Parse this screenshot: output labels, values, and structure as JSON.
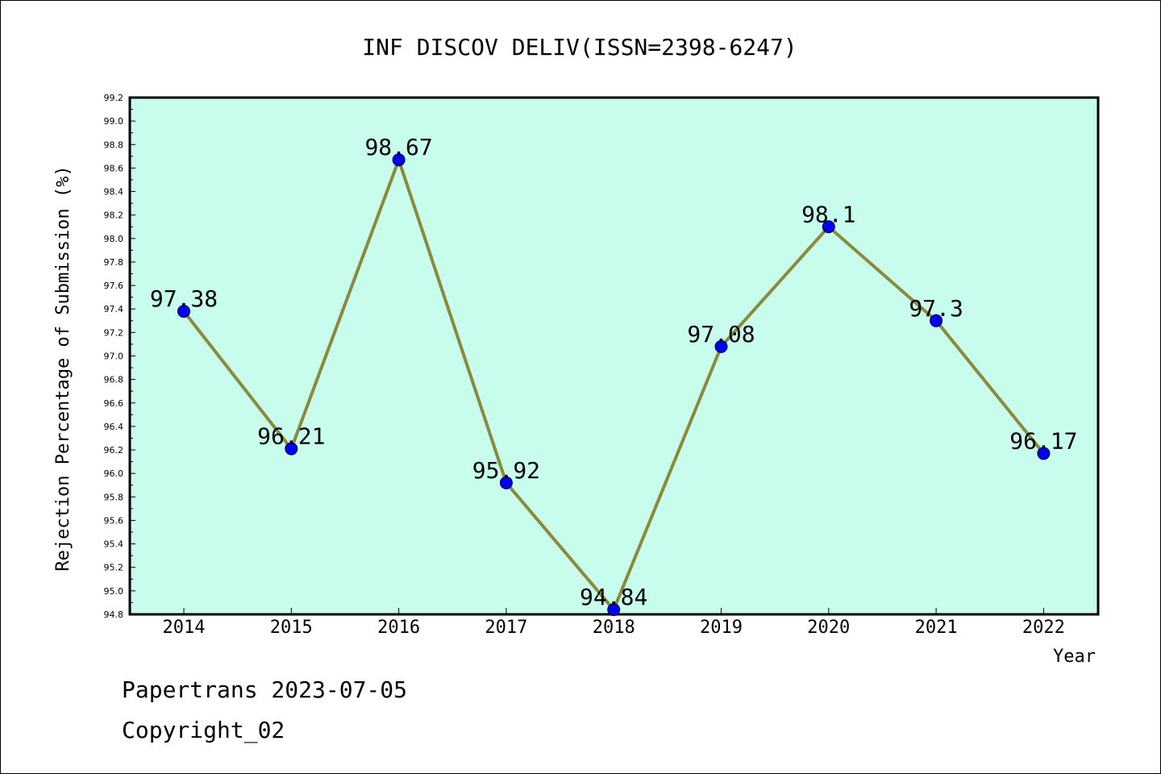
{
  "chart_data": {
    "type": "line",
    "title": "INF DISCOV DELIV(ISSN=2398-6247)",
    "xlabel": "Year",
    "ylabel": "Rejection Percentage of Submission (%)",
    "categories": [
      "2014",
      "2015",
      "2016",
      "2017",
      "2018",
      "2019",
      "2020",
      "2021",
      "2022"
    ],
    "values": [
      97.38,
      96.21,
      98.67,
      95.92,
      94.84,
      97.08,
      98.1,
      97.3,
      96.17
    ],
    "data_labels": [
      "97.38",
      "96.21",
      "98.67",
      "95.92",
      "94.84",
      "97.08",
      "98.1",
      "97.3",
      "96.17"
    ],
    "ylim": [
      94.8,
      99.2
    ],
    "yticks": [
      "94.8",
      "95.0",
      "95.2",
      "95.4",
      "95.6",
      "95.8",
      "96.0",
      "96.2",
      "96.4",
      "96.6",
      "96.8",
      "97.0",
      "97.2",
      "97.4",
      "97.6",
      "97.8",
      "98.0",
      "98.2",
      "98.4",
      "98.6",
      "98.8",
      "99.0",
      "99.2"
    ],
    "grid": false,
    "colors": {
      "plot_background": "#c8fcec",
      "line": "#8b8a3a",
      "marker": "#0000ee"
    }
  },
  "footer": {
    "line1": "Papertrans 2023-07-05",
    "line2": "Copyright_02"
  }
}
